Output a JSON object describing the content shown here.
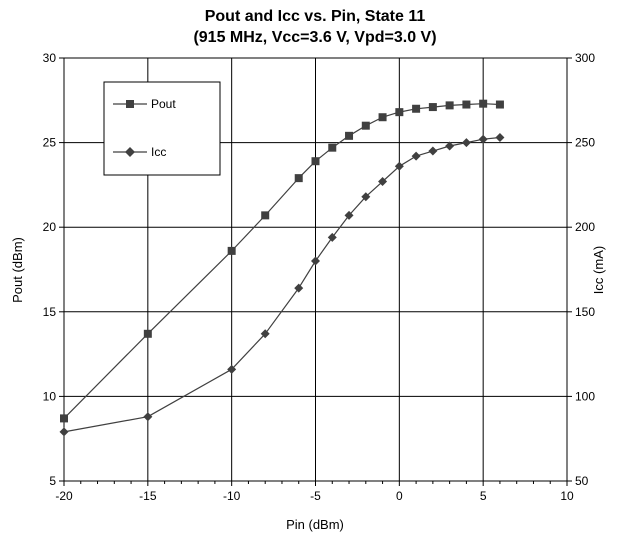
{
  "chart_data": {
    "type": "line",
    "title": "Pout and Icc vs. Pin, State 11",
    "subtitle": "(915 MHz, Vcc=3.6 V, Vpd=3.0 V)",
    "xlabel": "Pin (dBm)",
    "ylabel": "Pout (dBm)",
    "y2label": "Icc (mA)",
    "xlim": [
      -20,
      10
    ],
    "ylim": [
      5,
      30
    ],
    "y2lim": [
      50,
      300
    ],
    "xticks": [
      -20,
      -15,
      -10,
      -5,
      0,
      5,
      10
    ],
    "yticks": [
      5,
      10,
      15,
      20,
      25,
      30
    ],
    "y2ticks": [
      50,
      100,
      150,
      200,
      250,
      300
    ],
    "grid": true,
    "legend_position": "top-left",
    "series": [
      {
        "name": "Pout",
        "axis": "left",
        "marker": "square",
        "color": "#404040",
        "x": [
          -20,
          -15,
          -10,
          -8,
          -6,
          -5,
          -4,
          -3,
          -2,
          -1,
          0,
          1,
          2,
          3,
          4,
          5,
          6
        ],
        "y": [
          8.7,
          13.7,
          18.6,
          20.7,
          22.9,
          23.9,
          24.7,
          25.4,
          26.0,
          26.5,
          26.8,
          27.0,
          27.1,
          27.2,
          27.25,
          27.3,
          27.25
        ]
      },
      {
        "name": "Icc",
        "axis": "right",
        "marker": "diamond",
        "color": "#404040",
        "x": [
          -20,
          -15,
          -10,
          -8,
          -6,
          -5,
          -4,
          -3,
          -2,
          -1,
          0,
          1,
          2,
          3,
          4,
          5,
          6
        ],
        "y": [
          79,
          88,
          116,
          137,
          164,
          180,
          194,
          207,
          218,
          227,
          236,
          242,
          245,
          248,
          250,
          252,
          253
        ]
      }
    ]
  }
}
